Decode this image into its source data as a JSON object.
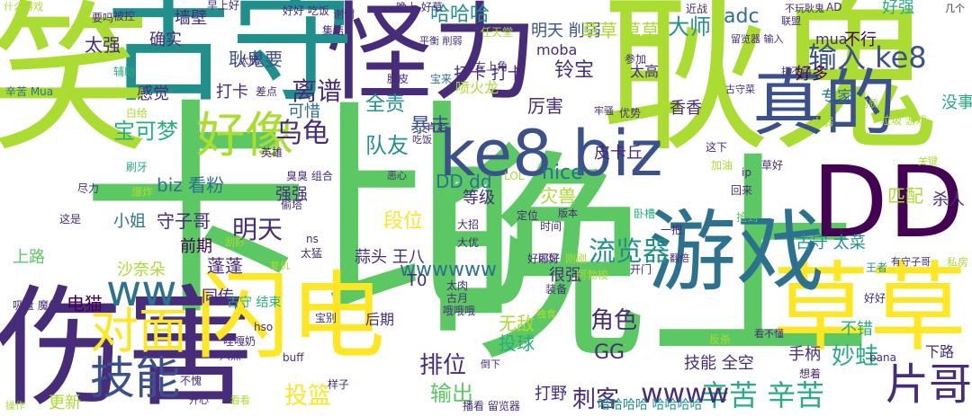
{
  "palette": [
    "#440154",
    "#472c7a",
    "#3b518b",
    "#2c718e",
    "#21908d",
    "#27ad81",
    "#5cc863",
    "#aadc32",
    "#fde725"
  ],
  "words": [
    {
      "text": "晚上",
      "color": "#5cc863"
    },
    {
      "text": "耿鬼",
      "color": "#aadc32"
    },
    {
      "text": "卡比",
      "color": "#5cc863"
    },
    {
      "text": "怪力",
      "color": "#472c7a"
    },
    {
      "text": "古守",
      "color": "#21908d"
    },
    {
      "text": "伤害",
      "color": "#472c7a"
    },
    {
      "text": "草草",
      "color": "#fde725"
    },
    {
      "text": "闪电",
      "color": "#fde725"
    },
    {
      "text": "游戏",
      "color": "#2c718e"
    },
    {
      "text": "DD",
      "color": "#440154"
    },
    {
      "text": "ke8 biz",
      "color": "#3b518b"
    },
    {
      "text": "真的",
      "color": "#3b518b"
    },
    {
      "text": "笑",
      "color": "#aadc32"
    },
    {
      "text": "技能",
      "color": "#3b518b"
    },
    {
      "text": "片哥",
      "color": "#472c7a"
    },
    {
      "text": "好像",
      "color": "#aadc32"
    },
    {
      "text": "对面",
      "color": "#fde725"
    },
    {
      "text": "ww",
      "color": "#2c718e"
    },
    {
      "text": "离谱",
      "color": "#472c7a"
    },
    {
      "text": "输入 ke8",
      "color": "#3b518b"
    },
    {
      "text": "大师",
      "color": "#21908d"
    },
    {
      "text": "辛苦 辛苦",
      "color": "#27ad81"
    },
    {
      "text": "流览器",
      "color": "#21908d"
    },
    {
      "text": "妙蛙",
      "color": "#27ad81"
    },
    {
      "text": "投篮",
      "color": "#fde725"
    },
    {
      "text": "wwww",
      "color": "#472c7a"
    },
    {
      "text": "wwwwww",
      "color": "#2c718e"
    },
    {
      "text": "宝可梦",
      "color": "#27ad81"
    },
    {
      "text": "乌龟",
      "color": "#472c7a"
    },
    {
      "text": "段位",
      "color": "#fde725"
    },
    {
      "text": "角色",
      "color": "#472c7a"
    },
    {
      "text": "排位",
      "color": "#472c7a"
    },
    {
      "text": "刺客",
      "color": "#472c7a"
    },
    {
      "text": "GG",
      "color": "#472c7a"
    },
    {
      "text": "输出",
      "color": "#5cc863"
    },
    {
      "text": "暴击",
      "color": "#3b518b"
    },
    {
      "text": "队友",
      "color": "#21908d"
    },
    {
      "text": "全责",
      "color": "#21908d"
    },
    {
      "text": "投球",
      "color": "#27ad81"
    },
    {
      "text": "无敌",
      "color": "#aadc32"
    },
    {
      "text": "守子哥",
      "color": "#472c7a"
    },
    {
      "text": "蓬蓬",
      "color": "#472c7a"
    },
    {
      "text": "电猫",
      "color": "#440154"
    },
    {
      "text": "明天",
      "color": "#472c7a"
    },
    {
      "text": "耿鬼要",
      "color": "#3b518b"
    },
    {
      "text": "太强",
      "color": "#472c7a"
    },
    {
      "text": "确实",
      "color": "#472c7a"
    },
    {
      "text": "墙壁",
      "color": "#472c7a"
    },
    {
      "text": "哈哈哈",
      "color": "#21908d"
    },
    {
      "text": "明天 削弱",
      "color": "#3b518b"
    },
    {
      "text": "adc",
      "color": "#2c718e"
    },
    {
      "text": "好强",
      "color": "#27ad81"
    },
    {
      "text": "打卡",
      "color": "#472c7a"
    },
    {
      "text": "铃宝",
      "color": "#472c7a"
    },
    {
      "text": "moba",
      "color": "#472c7a"
    },
    {
      "text": "不行",
      "color": "#440154"
    },
    {
      "text": "专家",
      "color": "#2c718e"
    },
    {
      "text": "好多",
      "color": "#440154"
    },
    {
      "text": "香香",
      "color": "#472c7a"
    },
    {
      "text": "厉害",
      "color": "#472c7a"
    },
    {
      "text": "nice",
      "color": "#2c718e"
    },
    {
      "text": "DD dd",
      "color": "#2c718e"
    },
    {
      "text": "等级",
      "color": "#472c7a"
    },
    {
      "text": "灾兽",
      "color": "#aadc32"
    },
    {
      "text": "皮卡丘",
      "color": "#472c7a"
    },
    {
      "text": "biz 看粉",
      "color": "#2c718e"
    },
    {
      "text": "强强",
      "color": "#472c7a"
    },
    {
      "text": "小姐",
      "color": "#2c718e"
    },
    {
      "text": "前期",
      "color": "#440154"
    },
    {
      "text": "同传",
      "color": "#472c7a"
    },
    {
      "text": "古守 结束",
      "color": "#27ad81"
    },
    {
      "text": "杀人",
      "color": "#472c7a"
    },
    {
      "text": "下路",
      "color": "#472c7a"
    },
    {
      "text": "匹配",
      "color": "#aadc32"
    },
    {
      "text": "不错",
      "color": "#27ad81"
    },
    {
      "text": "技能 全空",
      "color": "#472c7a"
    },
    {
      "text": "手柄",
      "color": "#472c7a"
    },
    {
      "text": "打野",
      "color": "#472c7a"
    },
    {
      "text": "打卡 打卡",
      "color": "#472c7a"
    },
    {
      "text": "感觉",
      "color": "#472c7a"
    },
    {
      "text": "可惜",
      "color": "#2c718e"
    },
    {
      "text": "沙奈朵",
      "color": "#aadc32"
    },
    {
      "text": "上路",
      "color": "#5cc863"
    },
    {
      "text": "很强",
      "color": "#472c7a"
    },
    {
      "text": "蒜头 王八",
      "color": "#472c7a"
    },
    {
      "text": "古守 太菜",
      "color": "#21908d"
    },
    {
      "text": "mua",
      "color": "#472c7a"
    },
    {
      "text": "太高",
      "color": "#472c7a"
    },
    {
      "text": "更新",
      "color": "#aadc32"
    },
    {
      "text": "后期",
      "color": "#472c7a"
    },
    {
      "text": "T0",
      "color": "#472c7a"
    },
    {
      "text": "喷火龙",
      "color": "#aadc32"
    },
    {
      "text": "没事",
      "color": "#27ad81"
    },
    {
      "text": "草草 草草",
      "color": "#aadc32"
    },
    {
      "text": "哈哈哈哈 哈哈哈哈",
      "color": "#21908d"
    },
    {
      "text": "播看 留览器",
      "color": "#472c7a"
    },
    {
      "text": "吸盘 魔偶",
      "color": "#472c7a"
    },
    {
      "text": "要吗",
      "color": "#472c7a"
    },
    {
      "text": "辛苦 Mua",
      "color": "#2c718e"
    },
    {
      "text": "辅助",
      "color": "#27ad81"
    },
    {
      "text": "什么游戏",
      "color": "#aadc32"
    },
    {
      "text": "被控",
      "color": "#472c7a"
    },
    {
      "text": "早上好",
      "color": "#472c7a"
    },
    {
      "text": "好好 吃饭",
      "color": "#472c7a"
    },
    {
      "text": "谢谢",
      "color": "#472c7a"
    },
    {
      "text": "晚上 好草",
      "color": "#472c7a"
    },
    {
      "text": "近战",
      "color": "#472c7a"
    },
    {
      "text": "AD",
      "color": "#472c7a"
    },
    {
      "text": "不玩耿鬼",
      "color": "#472c7a"
    },
    {
      "text": "集结",
      "color": "#472c7a"
    },
    {
      "text": "脆皮",
      "color": "#472c7a"
    },
    {
      "text": "宝来",
      "color": "#2c718e"
    },
    {
      "text": "左上角",
      "color": "#472c7a"
    },
    {
      "text": "参加",
      "color": "#472c7a"
    },
    {
      "text": "打不动",
      "color": "#472c7a"
    },
    {
      "text": "优势",
      "color": "#472c7a"
    },
    {
      "text": "这下",
      "color": "#472c7a"
    },
    {
      "text": "垃圾 游戏",
      "color": "#aadc32"
    },
    {
      "text": "草好",
      "color": "#472c7a"
    },
    {
      "text": "回来",
      "color": "#472c7a"
    },
    {
      "text": "抢到",
      "color": "#5cc863"
    },
    {
      "text": "开门",
      "color": "#472c7a"
    },
    {
      "text": "装备",
      "color": "#472c7a"
    },
    {
      "text": "版本",
      "color": "#472c7a"
    },
    {
      "text": "时间",
      "color": "#472c7a"
    },
    {
      "text": "大招",
      "color": "#472c7a"
    },
    {
      "text": "大优",
      "color": "#472c7a"
    },
    {
      "text": "好耶好",
      "color": "#472c7a"
    },
    {
      "text": "太肉",
      "color": "#472c7a"
    },
    {
      "text": "古月",
      "color": "#472c7a"
    },
    {
      "text": "哦哦哦",
      "color": "#472c7a"
    },
    {
      "text": "卧槽",
      "color": "#27ad81"
    },
    {
      "text": "翻倍",
      "color": "#472c7a"
    },
    {
      "text": "一把",
      "color": "#472c7a"
    },
    {
      "text": "有守子哥",
      "color": "#472c7a"
    },
    {
      "text": "王者",
      "color": "#21908d"
    },
    {
      "text": "私房",
      "color": "#aadc32"
    },
    {
      "text": "看不懂",
      "color": "#472c7a"
    },
    {
      "text": "反杀",
      "color": "#aadc32"
    },
    {
      "text": "想着",
      "color": "#472c7a"
    },
    {
      "text": "bana",
      "color": "#472c7a"
    },
    {
      "text": "样子",
      "color": "#472c7a"
    },
    {
      "text": "八点",
      "color": "#472c7a"
    },
    {
      "text": "buff",
      "color": "#472c7a"
    },
    {
      "text": "hso",
      "color": "#472c7a"
    },
    {
      "text": "ns",
      "color": "#472c7a"
    },
    {
      "text": "LOL",
      "color": "#aadc32"
    },
    {
      "text": "偷塔",
      "color": "#472c7a"
    },
    {
      "text": "臭臭 组合",
      "color": "#472c7a"
    },
    {
      "text": "英雄",
      "color": "#472c7a"
    },
    {
      "text": "这是",
      "color": "#472c7a"
    },
    {
      "text": "尽力",
      "color": "#472c7a"
    },
    {
      "text": "刷牙",
      "color": "#27ad81"
    },
    {
      "text": "爆炸",
      "color": "#aadc32"
    },
    {
      "text": "白给",
      "color": "#aadc32"
    },
    {
      "text": "差点",
      "color": "#472c7a"
    },
    {
      "text": "太脆",
      "color": "#472c7a"
    },
    {
      "text": "任天堂",
      "color": "#aadc32"
    },
    {
      "text": "联盟",
      "color": "#472c7a"
    },
    {
      "text": "留览器 输入",
      "color": "#472c7a"
    },
    {
      "text": "古守菜",
      "color": "#472c7a"
    },
    {
      "text": "太弱",
      "color": "#aadc32"
    },
    {
      "text": "画质",
      "color": "#aadc32"
    },
    {
      "text": "加油",
      "color": "#aadc32"
    },
    {
      "text": "ip",
      "color": "#472c7a"
    },
    {
      "text": "牢骚",
      "color": "#472c7a"
    },
    {
      "text": "定位",
      "color": "#472c7a"
    },
    {
      "text": "闪现",
      "color": "#472c7a"
    },
    {
      "text": "刚刚",
      "color": "#aadc32"
    },
    {
      "text": "阿勃梭",
      "color": "#aadc32"
    },
    {
      "text": "宝别",
      "color": "#472c7a"
    },
    {
      "text": "哇嘎奶",
      "color": "#472c7a"
    },
    {
      "text": "不愧",
      "color": "#472c7a"
    },
    {
      "text": "开心",
      "color": "#472c7a"
    },
    {
      "text": "操作",
      "color": "#aadc32"
    },
    {
      "text": "看看",
      "color": "#aadc32"
    },
    {
      "text": "倒下",
      "color": "#472c7a"
    },
    {
      "text": "好好",
      "color": "#472c7a"
    },
    {
      "text": "恶心",
      "color": "#472c7a"
    },
    {
      "text": "吃饭",
      "color": "#472c7a"
    },
    {
      "text": "太猛",
      "color": "#472c7a"
    },
    {
      "text": "复仇",
      "color": "#aadc32"
    },
    {
      "text": "刮痧",
      "color": "#aadc32"
    },
    {
      "text": "独食",
      "color": "#aadc32"
    },
    {
      "text": "肯定",
      "color": "#472c7a"
    },
    {
      "text": "几个",
      "color": "#472c7a"
    },
    {
      "text": "关键",
      "color": "#aadc32"
    },
    {
      "text": "平衡 削弱",
      "color": "#472c7a"
    },
    {
      "text": "大木",
      "color": "#aadc32"
    }
  ]
}
